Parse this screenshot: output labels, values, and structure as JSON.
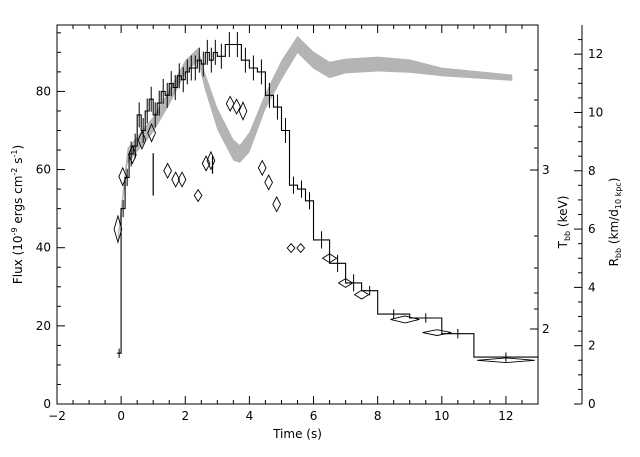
{
  "chart_data": {
    "type": "line",
    "title": "",
    "xlabel": "Time (s)",
    "xlim": [
      -2,
      13
    ],
    "x_ticks": [
      -2,
      0,
      2,
      4,
      6,
      8,
      10,
      12
    ],
    "axes": {
      "left": {
        "label_main": "Flux (10",
        "label_exp": "-9",
        "label_mid": " ergs cm",
        "label_exp2": "-2",
        "label_mid2": " s",
        "label_exp3": "-1",
        "label_end": ")",
        "ylim": [
          0,
          97
        ],
        "ticks": [
          0,
          20,
          40,
          60,
          80
        ]
      },
      "temp": {
        "label_main": "T",
        "label_sub": "bb",
        "label_end": " (keV)",
        "ticks": [
          2,
          3
        ]
      },
      "radius": {
        "label_main": "R",
        "label_sub": "bb",
        "label_mid": " (km/d",
        "label_sub2": "10 kpc",
        "label_end": ")",
        "ylim": [
          0,
          13
        ],
        "ticks": [
          0,
          2,
          4,
          6,
          8,
          10,
          12
        ]
      }
    },
    "series": [
      {
        "kind": "flux-step",
        "x_edges": [
          -0.125,
          0.0,
          0.125,
          0.25,
          0.375,
          0.5,
          0.625,
          0.75,
          0.875,
          1.0,
          1.125,
          1.25,
          1.375,
          1.5,
          1.625,
          1.75,
          1.875,
          2.0,
          2.125,
          2.25,
          2.375,
          2.5,
          2.625,
          2.75,
          2.875,
          3.0,
          3.25,
          3.5,
          3.75,
          4.0,
          4.25,
          4.5,
          4.75,
          5.0,
          5.25,
          5.5,
          5.75,
          6.0,
          6.5,
          7.0,
          7.5,
          8.0,
          9.0,
          10.0,
          11.0,
          13.0
        ],
        "values": [
          13,
          50,
          58,
          64,
          66,
          74,
          70,
          75,
          78,
          74,
          77,
          80,
          79,
          82,
          81,
          84,
          83,
          85,
          86,
          86,
          88,
          87,
          90,
          88,
          90,
          89,
          92,
          92,
          88,
          86,
          85,
          79,
          76,
          70,
          56,
          55,
          52,
          42,
          36,
          31,
          29,
          23,
          22,
          18,
          12
        ]
      },
      {
        "kind": "temperature-band",
        "x": [
          -0.1,
          0.2,
          0.5,
          1.0,
          1.5,
          2.0,
          2.4,
          2.6,
          3.0,
          3.5,
          3.7,
          4.0,
          4.5,
          5.0,
          5.5,
          6.0,
          6.5,
          7.0,
          8.0,
          9.0,
          10.0,
          12.2
        ],
        "lower": [
          40.5,
          61.5,
          64.5,
          69.5,
          76.5,
          84.5,
          87.8,
          80.8,
          70.2,
          62.3,
          61.7,
          64.4,
          75.4,
          83.0,
          89.8,
          85.8,
          83.4,
          84.6,
          85.1,
          84.8,
          83.9,
          82.7
        ],
        "upper": [
          43.5,
          65.5,
          68.5,
          73.5,
          80.5,
          88.0,
          91.2,
          85.2,
          75.8,
          67.7,
          66.3,
          69.6,
          79.6,
          88.0,
          94.2,
          90.2,
          87.6,
          88.4,
          88.9,
          88.2,
          86.1,
          84.3
        ]
      },
      {
        "kind": "radius-points",
        "x": [
          -0.1,
          0.05,
          0.35,
          0.65,
          0.95,
          1.45,
          1.7,
          1.9,
          2.4,
          2.65,
          2.8,
          3.4,
          3.6,
          3.8,
          4.4,
          4.6,
          4.85,
          5.3,
          5.6,
          6.5,
          7.0,
          7.5,
          8.85,
          9.85,
          12.0
        ],
        "y": [
          6.0,
          7.8,
          8.55,
          9.05,
          9.3,
          8.0,
          7.7,
          7.7,
          7.15,
          8.25,
          8.35,
          10.3,
          10.2,
          10.05,
          8.1,
          7.6,
          6.85,
          5.35,
          5.35,
          5.0,
          4.15,
          3.75,
          2.9,
          2.45,
          1.5
        ],
        "dx": [
          0.12,
          0.12,
          0.12,
          0.12,
          0.12,
          0.12,
          0.12,
          0.12,
          0.12,
          0.12,
          0.12,
          0.12,
          0.12,
          0.12,
          0.12,
          0.12,
          0.12,
          0.12,
          0.12,
          0.22,
          0.22,
          0.22,
          0.45,
          0.45,
          0.9
        ],
        "dy": [
          0.45,
          0.3,
          0.3,
          0.3,
          0.3,
          0.25,
          0.25,
          0.25,
          0.2,
          0.25,
          0.3,
          0.25,
          0.25,
          0.3,
          0.25,
          0.25,
          0.25,
          0.15,
          0.15,
          0.15,
          0.15,
          0.15,
          0.12,
          0.1,
          0.08
        ]
      },
      {
        "kind": "radius-bars",
        "x": [
          1.0,
          2.85
        ],
        "low": [
          7.15,
          7.9
        ],
        "high": [
          8.6,
          8.5
        ]
      }
    ]
  }
}
